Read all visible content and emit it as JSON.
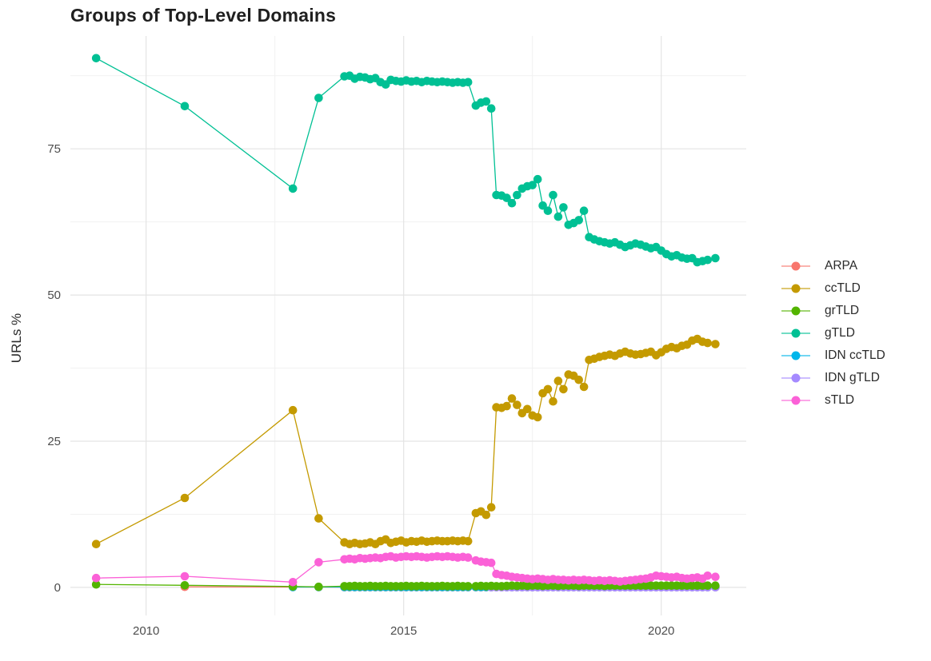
{
  "chart_data": {
    "type": "scatter-line",
    "title": "Groups of Top-Level Domains",
    "xlabel": "",
    "ylabel": "URLs %",
    "grid": true,
    "legend_position": "right",
    "xlim": [
      2008.53,
      2021.65
    ],
    "ylim": [
      -4.8,
      94.3
    ],
    "x_ticks": [
      {
        "label": "2010",
        "value": 2010
      },
      {
        "label": "2015",
        "value": 2015
      },
      {
        "label": "2020",
        "value": 2020
      }
    ],
    "y_ticks": [
      {
        "label": "0",
        "value": 0
      },
      {
        "label": "25",
        "value": 25
      },
      {
        "label": "50",
        "value": 50
      },
      {
        "label": "75",
        "value": 75
      }
    ],
    "x_minor": [
      2012.5,
      2017.5
    ],
    "y_minor": [
      12.5,
      37.5,
      62.5,
      87.5
    ],
    "x": [
      2009.03,
      2010.75,
      2012.85,
      2013.35,
      2013.85,
      2013.95,
      2014.05,
      2014.15,
      2014.25,
      2014.35,
      2014.45,
      2014.55,
      2014.65,
      2014.75,
      2014.85,
      2014.95,
      2015.05,
      2015.15,
      2015.25,
      2015.35,
      2015.45,
      2015.55,
      2015.65,
      2015.75,
      2015.85,
      2015.95,
      2016.05,
      2016.15,
      2016.25,
      2016.4,
      2016.5,
      2016.6,
      2016.7,
      2016.8,
      2016.9,
      2017.0,
      2017.1,
      2017.2,
      2017.3,
      2017.4,
      2017.5,
      2017.6,
      2017.7,
      2017.8,
      2017.9,
      2018.0,
      2018.1,
      2018.2,
      2018.3,
      2018.4,
      2018.5,
      2018.6,
      2018.7,
      2018.8,
      2018.9,
      2019.0,
      2019.1,
      2019.2,
      2019.3,
      2019.4,
      2019.5,
      2019.6,
      2019.7,
      2019.8,
      2019.9,
      2020.0,
      2020.1,
      2020.2,
      2020.3,
      2020.4,
      2020.5,
      2020.6,
      2020.7,
      2020.8,
      2020.9,
      2021.05
    ],
    "series": [
      {
        "name": "ARPA",
        "color": "#F8766D",
        "values": [
          null,
          0.1,
          0.05,
          0.05,
          0.03,
          0.03,
          0.03,
          0.03,
          0.03,
          0.03,
          0.03,
          0.03,
          0.03,
          0.03,
          0.03,
          0.03,
          0.03,
          0.03,
          0.03,
          0.03,
          0.03,
          0.03,
          0.03,
          0.03,
          0.03,
          0.03,
          0.03,
          0.03,
          0.03,
          0.03,
          0.03,
          0.03,
          0.03,
          0.03,
          0.03,
          0.03,
          0.03,
          0.03,
          0.03,
          0.03,
          0.03,
          0.03,
          0.03,
          0.03,
          0.03,
          0.03,
          0.03,
          0.03,
          0.03,
          0.03,
          0.03,
          0.03,
          0.03,
          0.03,
          0.03,
          0.03,
          0.03,
          0.03,
          0.03,
          0.03,
          0.03,
          0.03,
          0.03,
          0.03,
          0.03,
          0.03,
          0.03,
          0.03,
          0.03,
          0.03,
          0.03,
          0.03,
          0.03,
          0.03,
          0.03,
          0.03
        ]
      },
      {
        "name": "IDN ccTLD",
        "color": "#00B6EB",
        "values": [
          null,
          null,
          0.05,
          0.05,
          0.05,
          0.05,
          0.05,
          0.05,
          0.05,
          0.05,
          0.05,
          0.05,
          0.05,
          0.05,
          0.05,
          0.05,
          0.05,
          0.05,
          0.05,
          0.05,
          0.05,
          0.05,
          0.05,
          0.05,
          0.05,
          0.05,
          0.05,
          0.05,
          0.05,
          0.05,
          0.05,
          0.05,
          0.05,
          0.05,
          0.05,
          0.05,
          0.05,
          0.05,
          0.05,
          0.05,
          0.05,
          0.05,
          0.05,
          0.05,
          0.05,
          0.05,
          0.05,
          0.05,
          0.05,
          0.05,
          0.05,
          0.05,
          0.05,
          0.05,
          0.05,
          0.05,
          0.05,
          0.05,
          0.05,
          0.05,
          0.05,
          0.05,
          0.05,
          0.05,
          0.05,
          0.05,
          0.05,
          0.05,
          0.05,
          0.05,
          0.05,
          0.05,
          0.05,
          0.05,
          0.05,
          0.05
        ]
      },
      {
        "name": "IDN gTLD",
        "color": "#A58AFF",
        "values": [
          null,
          null,
          null,
          null,
          null,
          null,
          null,
          null,
          null,
          null,
          null,
          null,
          null,
          null,
          null,
          null,
          null,
          null,
          null,
          null,
          null,
          null,
          null,
          null,
          null,
          null,
          null,
          null,
          null,
          null,
          null,
          null,
          0.02,
          0.02,
          0.02,
          0.02,
          0.02,
          0.02,
          0.02,
          0.02,
          0.02,
          0.02,
          0.02,
          0.02,
          0.02,
          0.02,
          0.02,
          0.02,
          0.02,
          0.02,
          0.02,
          0.02,
          0.02,
          0.02,
          0.02,
          0.02,
          0.02,
          0.02,
          0.02,
          0.02,
          0.02,
          0.02,
          0.02,
          0.02,
          0.02,
          0.02,
          0.02,
          0.02,
          0.02,
          0.02,
          0.02,
          0.02,
          0.02,
          0.02,
          0.02,
          0.02
        ]
      },
      {
        "name": "grTLD",
        "color": "#53B400",
        "values": [
          0.5,
          0.35,
          0.15,
          0.1,
          0.2,
          0.2,
          0.25,
          0.2,
          0.2,
          0.25,
          0.2,
          0.2,
          0.25,
          0.2,
          0.2,
          0.2,
          0.25,
          0.2,
          0.2,
          0.25,
          0.2,
          0.2,
          0.2,
          0.25,
          0.2,
          0.2,
          0.25,
          0.2,
          0.2,
          0.2,
          0.25,
          0.2,
          0.25,
          0.2,
          0.2,
          0.25,
          0.3,
          0.25,
          0.3,
          0.25,
          0.3,
          0.3,
          0.25,
          0.3,
          0.3,
          0.25,
          0.3,
          0.3,
          0.3,
          0.25,
          0.3,
          0.3,
          0.3,
          0.3,
          0.25,
          0.3,
          0.3,
          0.3,
          0.3,
          0.3,
          0.3,
          0.3,
          0.3,
          0.3,
          0.3,
          0.3,
          0.3,
          0.3,
          0.3,
          0.3,
          0.3,
          0.3,
          0.3,
          0.3,
          0.3,
          0.3
        ]
      },
      {
        "name": "gTLD",
        "color": "#00C094",
        "values": [
          90.5,
          82.3,
          68.2,
          83.7,
          87.4,
          87.5,
          87.0,
          87.3,
          87.2,
          86.9,
          87.1,
          86.4,
          86.0,
          86.8,
          86.6,
          86.5,
          86.7,
          86.5,
          86.6,
          86.4,
          86.6,
          86.5,
          86.4,
          86.5,
          86.4,
          86.3,
          86.4,
          86.3,
          86.4,
          82.4,
          82.9,
          83.1,
          81.9,
          67.1,
          67.0,
          66.6,
          65.7,
          67.1,
          68.2,
          68.6,
          68.8,
          69.8,
          65.3,
          64.4,
          67.1,
          63.4,
          65.0,
          62.0,
          62.3,
          62.8,
          64.4,
          59.9,
          59.5,
          59.2,
          59.0,
          58.8,
          59.0,
          58.6,
          58.2,
          58.5,
          58.8,
          58.6,
          58.3,
          58.0,
          58.2,
          57.6,
          57.0,
          56.6,
          56.8,
          56.4,
          56.2,
          56.3,
          55.6,
          55.8,
          56.0,
          56.3
        ]
      },
      {
        "name": "ccTLD",
        "color": "#C49A00",
        "values": [
          7.4,
          15.3,
          30.3,
          11.8,
          7.7,
          7.4,
          7.6,
          7.4,
          7.5,
          7.7,
          7.4,
          7.9,
          8.2,
          7.6,
          7.8,
          8.0,
          7.7,
          7.9,
          7.8,
          8.0,
          7.8,
          7.9,
          8.0,
          7.9,
          7.9,
          8.0,
          7.9,
          8.0,
          7.9,
          12.7,
          13.0,
          12.4,
          13.7,
          30.8,
          30.7,
          31.0,
          32.3,
          31.2,
          29.8,
          30.5,
          29.4,
          29.1,
          33.2,
          33.9,
          31.8,
          35.3,
          33.9,
          36.4,
          36.2,
          35.5,
          34.3,
          38.9,
          39.1,
          39.4,
          39.6,
          39.8,
          39.6,
          40.0,
          40.3,
          40.0,
          39.8,
          39.9,
          40.1,
          40.3,
          39.7,
          40.2,
          40.8,
          41.1,
          40.9,
          41.3,
          41.5,
          42.2,
          42.5,
          42.0,
          41.8,
          41.6
        ]
      },
      {
        "name": "sTLD",
        "color": "#FB61D7",
        "values": [
          1.6,
          1.9,
          0.9,
          4.3,
          4.8,
          4.9,
          4.8,
          5.0,
          4.9,
          5.0,
          5.1,
          5.0,
          5.2,
          5.3,
          5.1,
          5.2,
          5.3,
          5.2,
          5.3,
          5.2,
          5.1,
          5.2,
          5.3,
          5.2,
          5.3,
          5.2,
          5.1,
          5.2,
          5.1,
          4.6,
          4.4,
          4.3,
          4.2,
          2.3,
          2.1,
          2.0,
          1.8,
          1.7,
          1.6,
          1.5,
          1.4,
          1.5,
          1.4,
          1.3,
          1.4,
          1.3,
          1.3,
          1.2,
          1.3,
          1.2,
          1.3,
          1.2,
          1.1,
          1.2,
          1.1,
          1.2,
          1.1,
          1.0,
          1.1,
          1.2,
          1.3,
          1.4,
          1.5,
          1.7,
          2.0,
          1.9,
          1.8,
          1.7,
          1.8,
          1.6,
          1.5,
          1.6,
          1.7,
          1.5,
          2.0,
          1.8
        ]
      }
    ],
    "legend_order": [
      "ARPA",
      "ccTLD",
      "grTLD",
      "gTLD",
      "IDN ccTLD",
      "IDN gTLD",
      "sTLD"
    ]
  },
  "colors": {
    "background": "#ffffff",
    "grid_major": "#e4e4e4",
    "grid_minor": "#f1f1f1",
    "axis_text": "#4d4d4d",
    "title_text": "#1f1f1f"
  }
}
